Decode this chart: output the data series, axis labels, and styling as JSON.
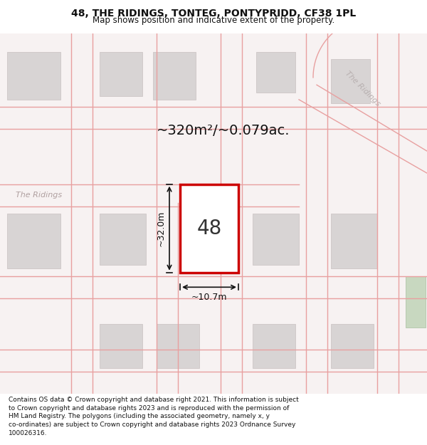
{
  "title": "48, THE RIDINGS, TONTEG, PONTYPRIDD, CF38 1PL",
  "subtitle": "Map shows position and indicative extent of the property.",
  "footer_line1": "Contains OS data © Crown copyright and database right 2021. This information is subject",
  "footer_line2": "to Crown copyright and database rights 2023 and is reproduced with the permission of",
  "footer_line3": "HM Land Registry. The polygons (including the associated geometry, namely x, y",
  "footer_line4": "co-ordinates) are subject to Crown copyright and database rights 2023 Ordnance Survey",
  "footer_line5": "100026316.",
  "bg_color": "#f5f0f0",
  "map_bg": "#f9f5f5",
  "road_color": "#e8b0b0",
  "building_color": "#e0d8d8",
  "building_fill": "#d8d0d0",
  "highlight_fill": "#ffffff",
  "highlight_stroke": "#cc0000",
  "annotation_color": "#111111",
  "area_text": "~320m²/~0.079ac.",
  "label_48": "48",
  "dim_height": "~32.0m",
  "dim_width": "~10.7m",
  "street_name_1": "The Ridings",
  "street_name_2": "The Ridings",
  "street_name_diagonal": "The Ridings"
}
